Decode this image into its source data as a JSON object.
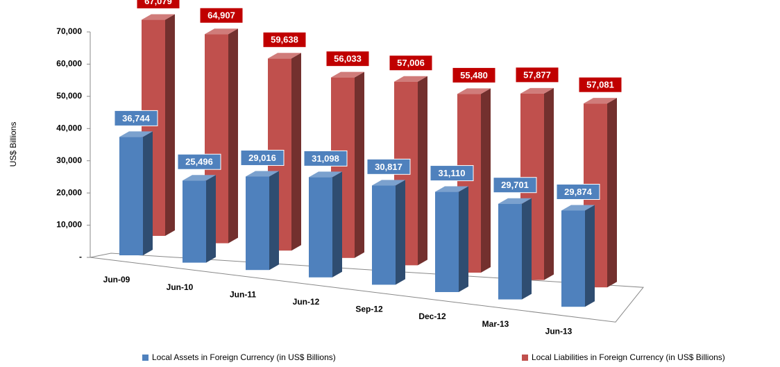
{
  "chart_data": {
    "type": "bar3d",
    "y_label": "US$ Billions",
    "categories": [
      "Jun-09",
      "Jun-10",
      "Jun-11",
      "Jun-12",
      "Sep-12",
      "Dec-12",
      "Mar-13",
      "Jun-13"
    ],
    "series": [
      {
        "name": "Local Assets in Foreign Currency (in US$ Billions)",
        "color": "#4f81bd",
        "values": [
          36744,
          25496,
          29016,
          31098,
          30817,
          31110,
          29701,
          29874
        ],
        "value_labels": [
          "36,744",
          "25,496",
          "29,016",
          "31,098",
          "30,817",
          "31,110",
          "29,701",
          "29,874"
        ]
      },
      {
        "name": "Local Liabilities in Foreign Currency (in US$ Billions)",
        "color": "#c0504d",
        "values": [
          67079,
          64907,
          59638,
          56033,
          57006,
          55480,
          57877,
          57081
        ],
        "value_labels": [
          "67,079",
          "64,907",
          "59,638",
          "56,033",
          "57,006",
          "55,480",
          "57,877",
          "57,081"
        ]
      }
    ],
    "ylim": [
      0,
      70000
    ],
    "yticks": [
      {
        "value": 0,
        "label": "-"
      },
      {
        "value": 10000,
        "label": "10,000"
      },
      {
        "value": 20000,
        "label": "20,000"
      },
      {
        "value": 30000,
        "label": "30,000"
      },
      {
        "value": 40000,
        "label": "40,000"
      },
      {
        "value": 50000,
        "label": "50,000"
      },
      {
        "value": 60000,
        "label": "60,000"
      },
      {
        "value": 70000,
        "label": "70,000"
      }
    ]
  }
}
